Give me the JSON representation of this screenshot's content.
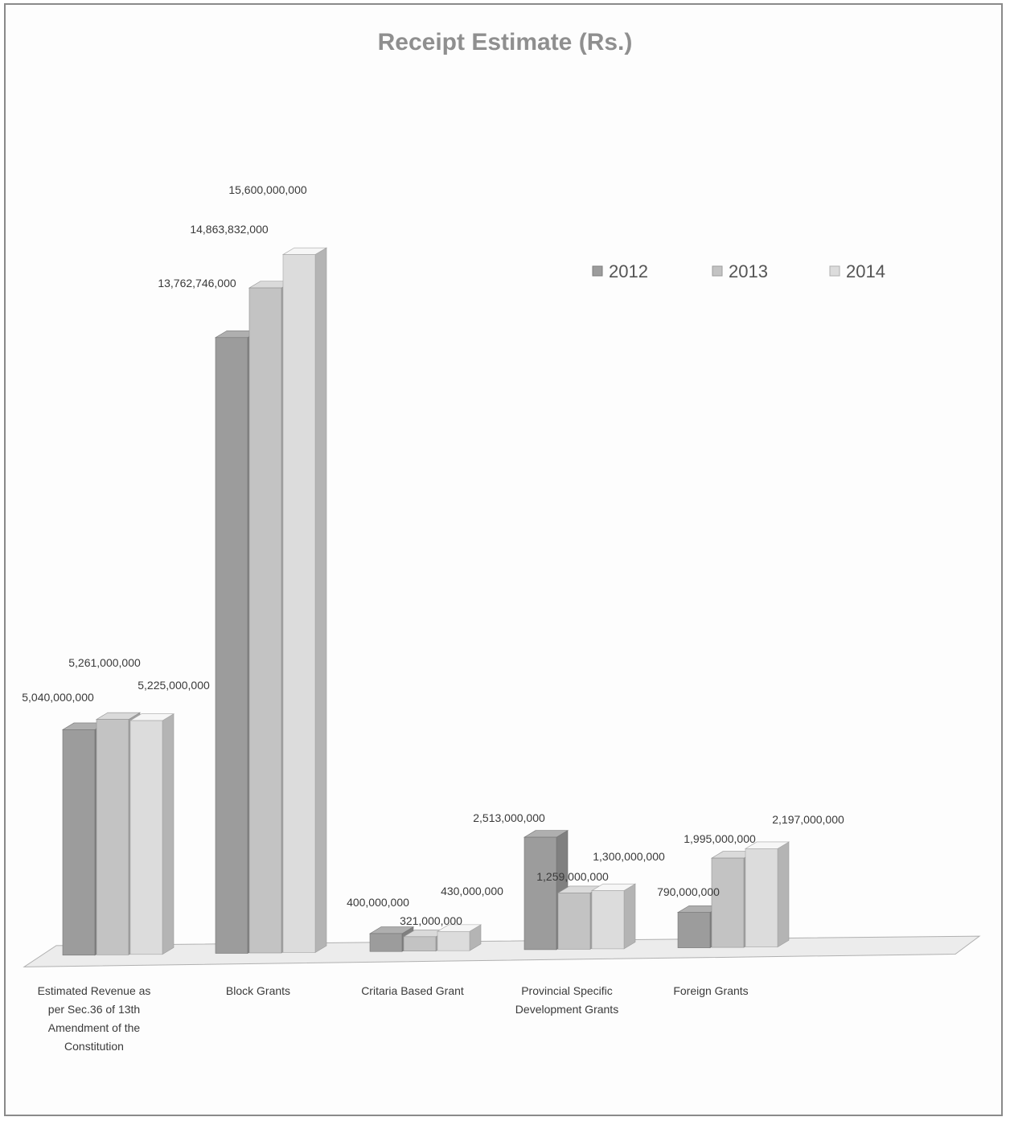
{
  "chart_data": {
    "type": "bar",
    "title": "Receipt Estimate (Rs.)",
    "xlabel": "",
    "ylabel": "",
    "categories": [
      "Estimated Revenue as per Sec.36 of 13th Amendment of the Constitution",
      "Block Grants",
      "Critaria Based Grant",
      "Provincial Specific Development Grants",
      "Foreign Grants"
    ],
    "series": [
      {
        "name": "2012",
        "values": [
          5040000000,
          13762746000,
          400000000,
          2513000000,
          790000000
        ]
      },
      {
        "name": "2013",
        "values": [
          5261000000,
          14863832000,
          321000000,
          1259000000,
          1995000000
        ]
      },
      {
        "name": "2014",
        "values": [
          5225000000,
          15600000000,
          430000000,
          1300000000,
          2197000000
        ]
      }
    ],
    "data_labels": [
      [
        "5,040,000,000",
        "13,762,746,000",
        "400,000,000",
        "2,513,000,000",
        "790,000,000"
      ],
      [
        "5,261,000,000",
        "14,863,832,000",
        "321,000,000",
        "1,259,000,000",
        "1,995,000,000"
      ],
      [
        "5,225,000,000",
        "15,600,000,000",
        "430,000,000",
        "1,300,000,000",
        "2,197,000,000"
      ]
    ],
    "colors": [
      "#9c9c9c",
      "#c3c3c3",
      "#dcdcdc"
    ],
    "ylim": [
      0,
      16500000000
    ],
    "grid": false,
    "legend_position": "top-right",
    "style": "3d-column"
  }
}
